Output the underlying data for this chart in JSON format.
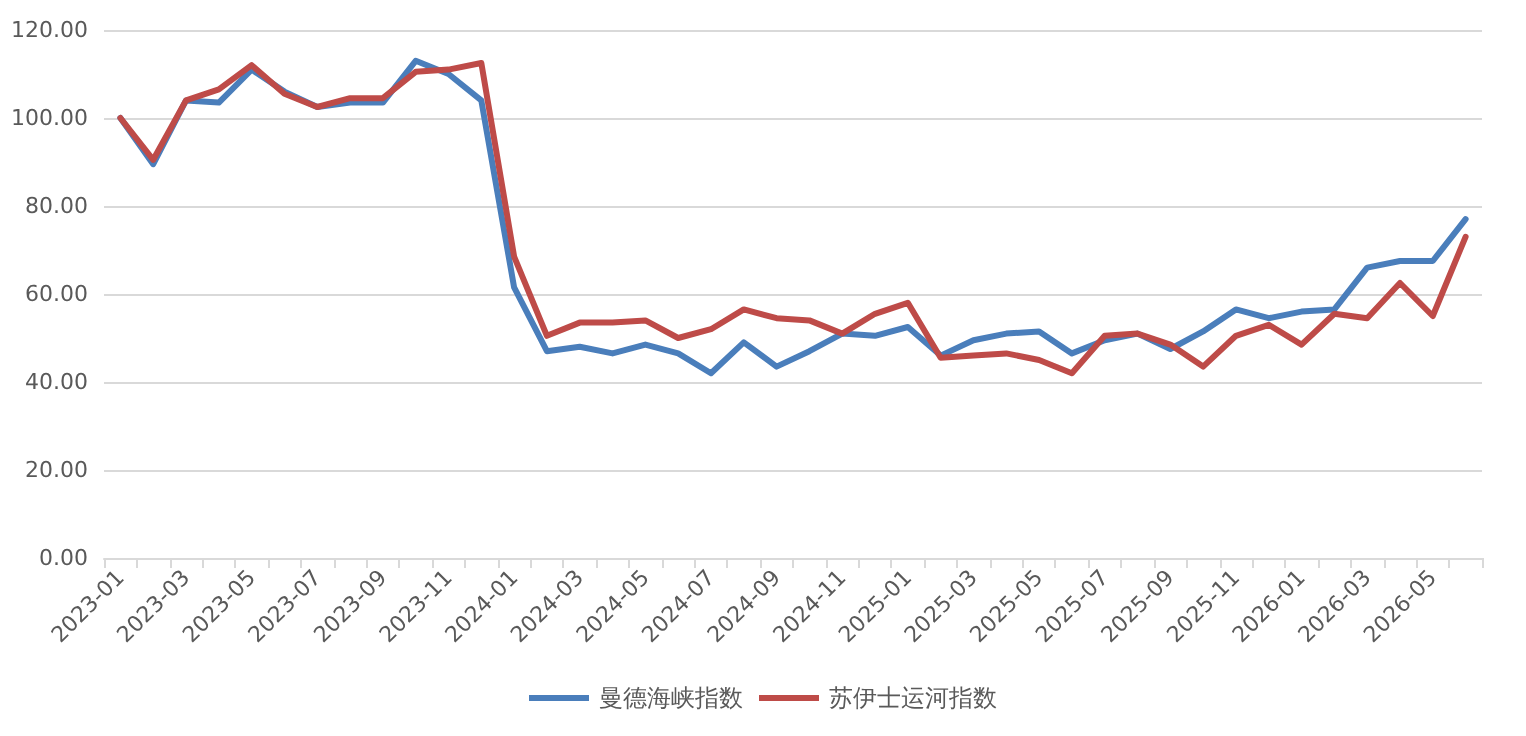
{
  "chart_data": {
    "type": "line",
    "categories": [
      "2023-01",
      null,
      "2023-03",
      null,
      "2023-05",
      null,
      "2023-07",
      null,
      "2023-09",
      null,
      "2023-11",
      null,
      "2024-01",
      null,
      "2024-03",
      null,
      "2024-05",
      null,
      "2024-07",
      null,
      "2024-09",
      null,
      "2024-11",
      null,
      "2025-01",
      null,
      "2025-03",
      null,
      "2025-05",
      null,
      "2025-07",
      null,
      "2025-09",
      null,
      "2025-11",
      null,
      "2026-01",
      null,
      "2026-03",
      null,
      "2026-05",
      null
    ],
    "series": [
      {
        "name": "曼德海峡指数",
        "color": "#4a7ebb",
        "values": [
          100,
          89.5,
          104,
          103.5,
          111,
          106,
          102.5,
          103.5,
          103.5,
          113,
          110,
          104,
          61.5,
          47,
          48,
          46.5,
          48.5,
          46.5,
          42,
          49,
          43.5,
          47,
          51,
          50.5,
          52.5,
          46,
          49.5,
          51,
          51.5,
          46.5,
          49.5,
          51,
          47.5,
          51.5,
          56.5,
          54.5,
          56,
          56.5,
          66,
          67.5,
          67.5,
          77
        ]
      },
      {
        "name": "苏伊士运河指数",
        "color": "#be4b48",
        "values": [
          100,
          90.5,
          104,
          106.5,
          112,
          105.5,
          102.5,
          104.5,
          104.5,
          110.5,
          111,
          112.5,
          68.5,
          50.5,
          53.5,
          53.5,
          54,
          50,
          52,
          56.5,
          54.5,
          54,
          51,
          55.5,
          58,
          45.5,
          46,
          46.5,
          45,
          42,
          50.5,
          51,
          48.5,
          43.5,
          50.5,
          53,
          48.5,
          55.5,
          54.5,
          62.5,
          55,
          73
        ]
      }
    ],
    "ylim": [
      0,
      120
    ],
    "yticks": [
      {
        "value": 0,
        "label": "0.00"
      },
      {
        "value": 20,
        "label": "20.00"
      },
      {
        "value": 40,
        "label": "40.00"
      },
      {
        "value": 60,
        "label": "60.00"
      },
      {
        "value": 80,
        "label": "80.00"
      },
      {
        "value": 100,
        "label": "100.00"
      },
      {
        "value": 120,
        "label": "120.00"
      }
    ],
    "grid": "y",
    "legend": "bottom",
    "marker": "none",
    "line_style": "solid"
  }
}
